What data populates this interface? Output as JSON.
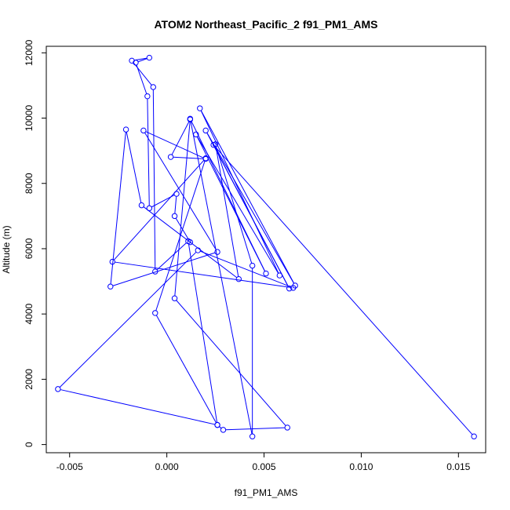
{
  "chart_data": {
    "type": "line",
    "title": "ATOM2 Northeast_Pacific_2 f91_PM1_AMS",
    "xlabel": "f91_PM1_AMS",
    "ylabel": "Altitude (m)",
    "xlim": [
      -0.0062,
      0.0164
    ],
    "ylim": [
      -250,
      12200
    ],
    "xticks": [
      -0.005,
      0.0,
      0.005,
      0.01,
      0.015
    ],
    "xtick_labels": [
      "-0.005",
      "0.000",
      "0.005",
      "0.010",
      "0.015"
    ],
    "yticks": [
      0,
      2000,
      4000,
      6000,
      8000,
      10000,
      12000
    ],
    "ytick_labels": [
      "0",
      "2000",
      "4000",
      "6000",
      "8000",
      "10000",
      "12000"
    ],
    "grid": false,
    "series": [
      {
        "color": "#0000ff",
        "marker": "open-circle",
        "points": [
          [
            0.0158,
            250
          ],
          [
            0.0024,
            9180
          ],
          [
            0.0063,
            4780
          ],
          [
            0.002,
            9620
          ],
          [
            0.0066,
            4870
          ],
          [
            0.0017,
            10300
          ],
          [
            0.0058,
            5180
          ],
          [
            0.0015,
            9500
          ],
          [
            0.0051,
            5240
          ],
          [
            0.0012,
            9980
          ],
          [
            0.0044,
            250
          ],
          [
            0.0044,
            5480
          ],
          [
            0.0025,
            9200
          ],
          [
            0.0037,
            5070
          ],
          [
            -0.0013,
            7330
          ],
          [
            -0.0021,
            9650
          ],
          [
            -0.0029,
            4840
          ],
          [
            0.0026,
            5900
          ],
          [
            -0.0012,
            9620
          ],
          [
            0.002,
            8750
          ],
          [
            0.0002,
            8810
          ],
          [
            0.0012,
            9960
          ],
          [
            0.0004,
            4480
          ],
          [
            0.0062,
            520
          ],
          [
            0.0029,
            450
          ],
          [
            0.0026,
            600
          ],
          [
            -0.0006,
            4030
          ],
          [
            0.002,
            8770
          ],
          [
            -0.0028,
            5600
          ],
          [
            0.0065,
            4800
          ],
          [
            0.0016,
            5950
          ],
          [
            -0.0056,
            1700
          ],
          [
            0.0026,
            600
          ],
          [
            0.0011,
            6230
          ],
          [
            -0.0006,
            5300
          ],
          [
            -0.0007,
            10950
          ],
          [
            -0.0018,
            11760
          ],
          [
            -0.0009,
            11850
          ],
          [
            -0.0016,
            11700
          ],
          [
            -0.001,
            10670
          ],
          [
            -0.0009,
            7240
          ],
          [
            0.0005,
            7680
          ],
          [
            0.0004,
            7000
          ],
          [
            0.0012,
            6200
          ]
        ]
      }
    ]
  }
}
